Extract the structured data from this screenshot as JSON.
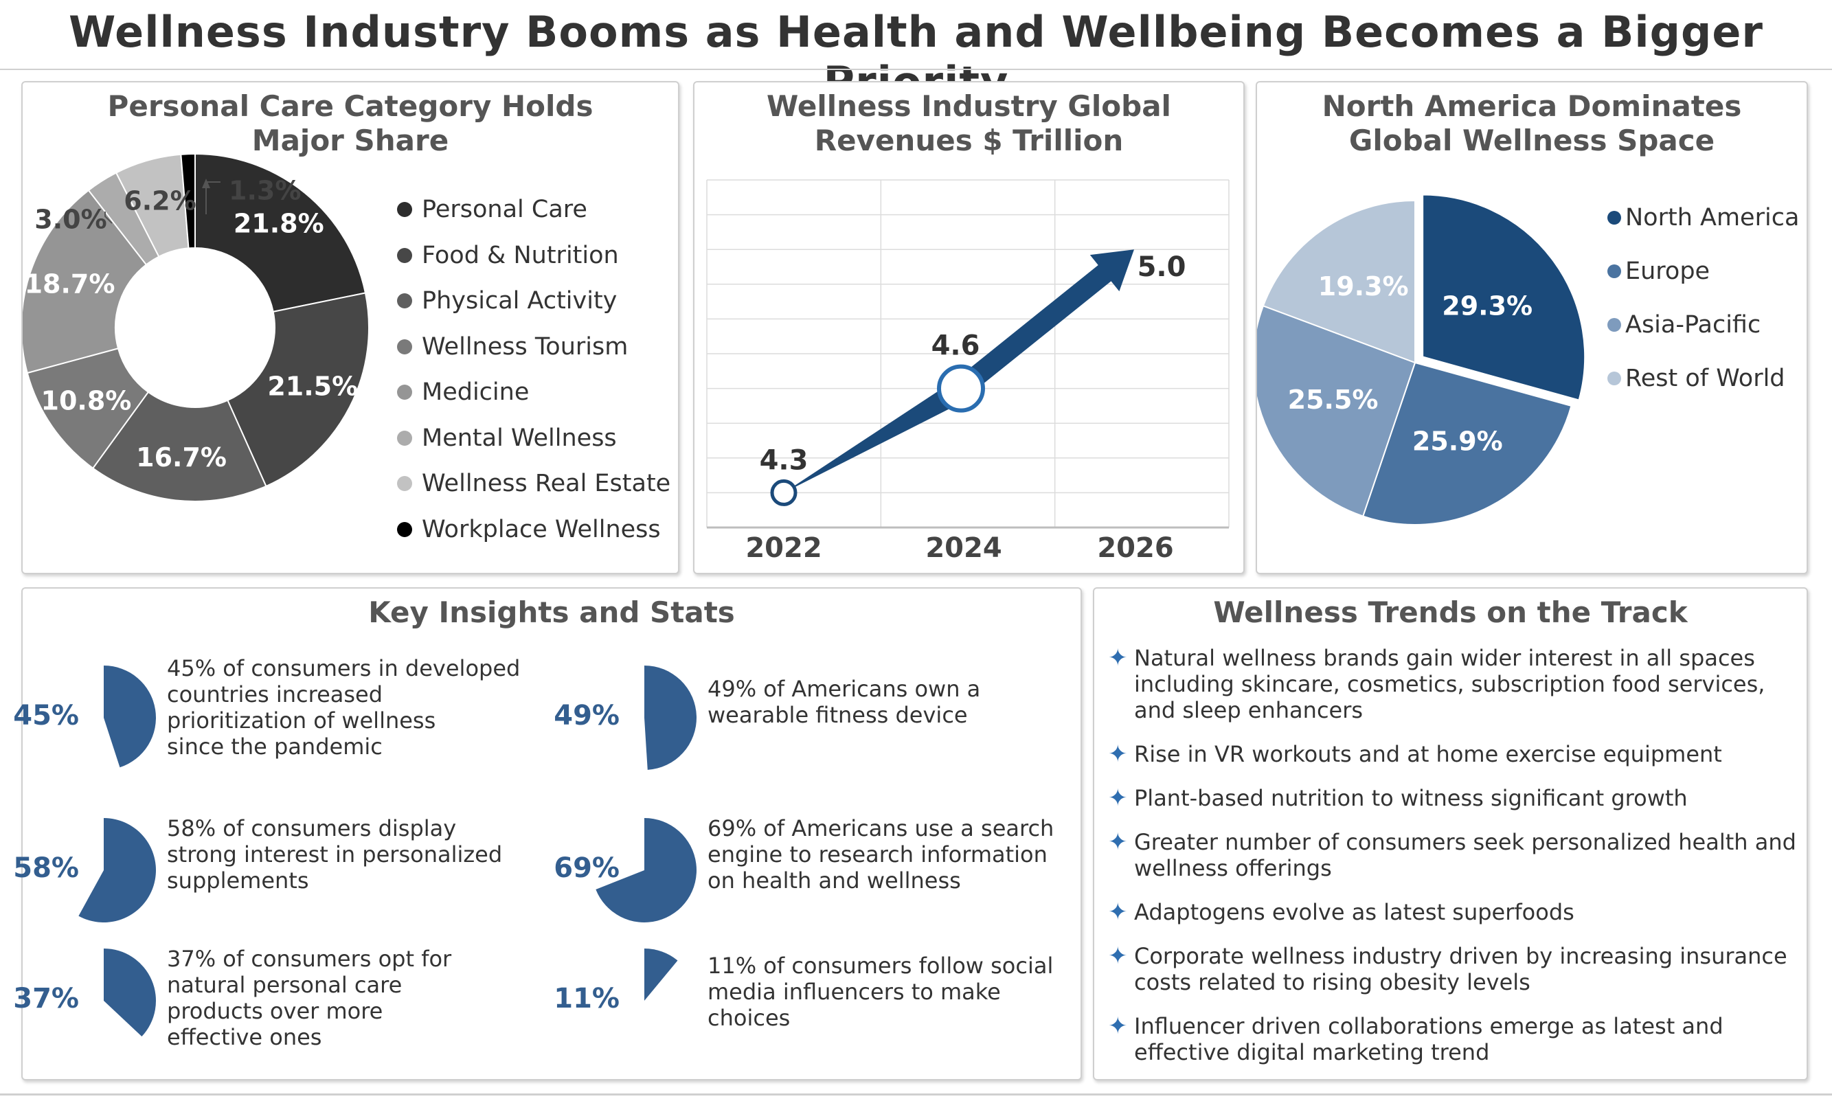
{
  "title": "Wellness Industry Booms as Health and Wellbeing Becomes a Bigger Priority",
  "colors": {
    "navy": "#1b4a7a",
    "mid_blue": "#4a73a0",
    "steel_blue": "#7e9bbd",
    "pale_blue": "#b6c6d8",
    "stat_blue": "#335e8f",
    "bullet_blue": "#2f6eb0"
  },
  "donut": {
    "title_line1": "Personal Care Category Holds",
    "title_line2": "Major Share",
    "chart_data": {
      "type": "pie",
      "donut": true,
      "categories": [
        "Personal Care",
        "Food & Nutrition",
        "Physical Activity",
        "Wellness Tourism",
        "Medicine",
        "Mental Wellness",
        "Wellness Real Estate",
        "Workplace Wellness"
      ],
      "values": [
        21.8,
        21.5,
        16.7,
        10.8,
        18.7,
        3.0,
        6.2,
        1.3
      ],
      "labels": [
        "21.8%",
        "21.5%",
        "16.7%",
        "10.8%",
        "18.7%",
        "3.0%",
        "6.2%",
        "1.3%"
      ],
      "colors": [
        "#2d2d2d",
        "#474747",
        "#5f5f5f",
        "#7a7a7a",
        "#959595",
        "#acacac",
        "#c2c2c2",
        "#000000"
      ],
      "legend_position": "right"
    }
  },
  "line": {
    "title_line1": "Wellness Industry Global",
    "title_line2": "Revenues $ Trillion",
    "chart_data": {
      "type": "line",
      "x": [
        "2022",
        "2024",
        "2026"
      ],
      "series": [
        {
          "values": [
            4.3,
            4.6,
            5.0
          ]
        }
      ],
      "value_labels": [
        "4.3",
        "4.6",
        "5.0"
      ],
      "grid": true
    }
  },
  "pie": {
    "title_line1": "North America Dominates",
    "title_line2": "Global Wellness Space",
    "chart_data": {
      "type": "pie",
      "categories": [
        "North America",
        "Europe",
        "Asia-Pacific",
        "Rest of World"
      ],
      "values": [
        29.3,
        25.9,
        25.5,
        19.3
      ],
      "labels": [
        "29.3%",
        "25.9%",
        "25.5%",
        "19.3%"
      ],
      "colors": [
        "#1b4a7a",
        "#4a73a0",
        "#7e9bbd",
        "#b6c6d8"
      ],
      "legend_position": "right"
    }
  },
  "insights": {
    "title": "Key Insights and Stats",
    "stats": [
      {
        "value": 45,
        "label": "45%",
        "text": [
          "45% of consumers in developed",
          "countries increased",
          "prioritization of wellness",
          "since the pandemic"
        ]
      },
      {
        "value": 49,
        "label": "49%",
        "text": [
          "49% of Americans own a",
          "wearable fitness device"
        ]
      },
      {
        "value": 58,
        "label": "58%",
        "text": [
          "58% of consumers display",
          "strong interest in personalized",
          "supplements"
        ]
      },
      {
        "value": 69,
        "label": "69%",
        "text": [
          "69% of Americans use a search",
          "engine to research information",
          "on health and wellness"
        ]
      },
      {
        "value": 37,
        "label": "37%",
        "text": [
          "37% of consumers opt for",
          "natural personal care",
          "products over more",
          "effective ones"
        ]
      },
      {
        "value": 11,
        "label": "11%",
        "text": [
          "11% of consumers follow social",
          "media influencers to make",
          "choices"
        ]
      }
    ]
  },
  "trends": {
    "title": "Wellness Trends on the Track",
    "bullet": "✦",
    "items": [
      "Natural wellness brands gain wider interest in all spaces including skincare, cosmetics, subscription food services, and sleep enhancers",
      "Rise in VR workouts and at home exercise equipment",
      "Plant-based nutrition to witness significant growth",
      "Greater number of consumers seek personalized health and wellness offerings",
      "Adaptogens evolve as latest superfoods",
      "Corporate wellness industry driven by increasing insurance costs related to rising obesity levels",
      "Influencer driven collaborations emerge as latest and effective digital marketing trend"
    ]
  }
}
